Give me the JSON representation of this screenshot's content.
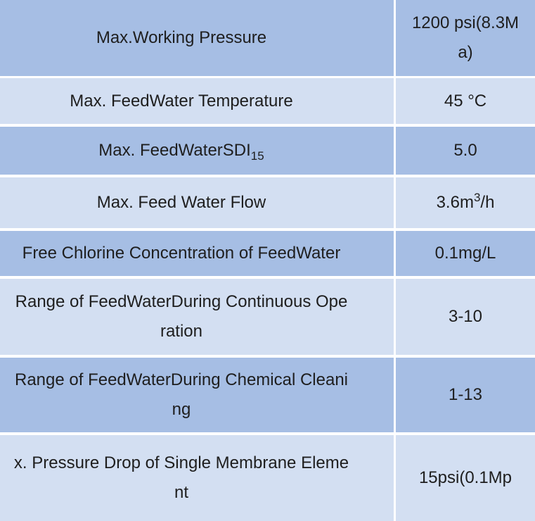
{
  "table": {
    "rows": [
      [
        [
          "Max.Working Pressure"
        ],
        [
          "1200 psi(8.3M",
          "a)"
        ]
      ],
      [
        [
          "Max. FeedWater Temperature"
        ],
        [
          "45 °C"
        ]
      ],
      [
        [
          {
            "text": "Max. FeedWaterSDI",
            "sub": "15"
          }
        ],
        [
          "5.0"
        ]
      ],
      [
        [
          "Max. Feed Water Flow"
        ],
        [
          {
            "text": "3.6m",
            "sup": "3",
            "tail": "/h"
          }
        ]
      ],
      [
        [
          "Free Chlorine Concentration of FeedWater"
        ],
        [
          "0.1mg/L"
        ]
      ],
      [
        [
          "Range of FeedWaterDuring Continuous Ope",
          "ration"
        ],
        [
          "3-10"
        ]
      ],
      [
        [
          "Range of FeedWaterDuring Chemical Cleani",
          "ng"
        ],
        [
          "1-13"
        ]
      ],
      [
        [
          "x. Pressure Drop of Single Membrane Eleme",
          "nt"
        ],
        [
          "15psi(0.1Mp"
        ]
      ]
    ]
  }
}
